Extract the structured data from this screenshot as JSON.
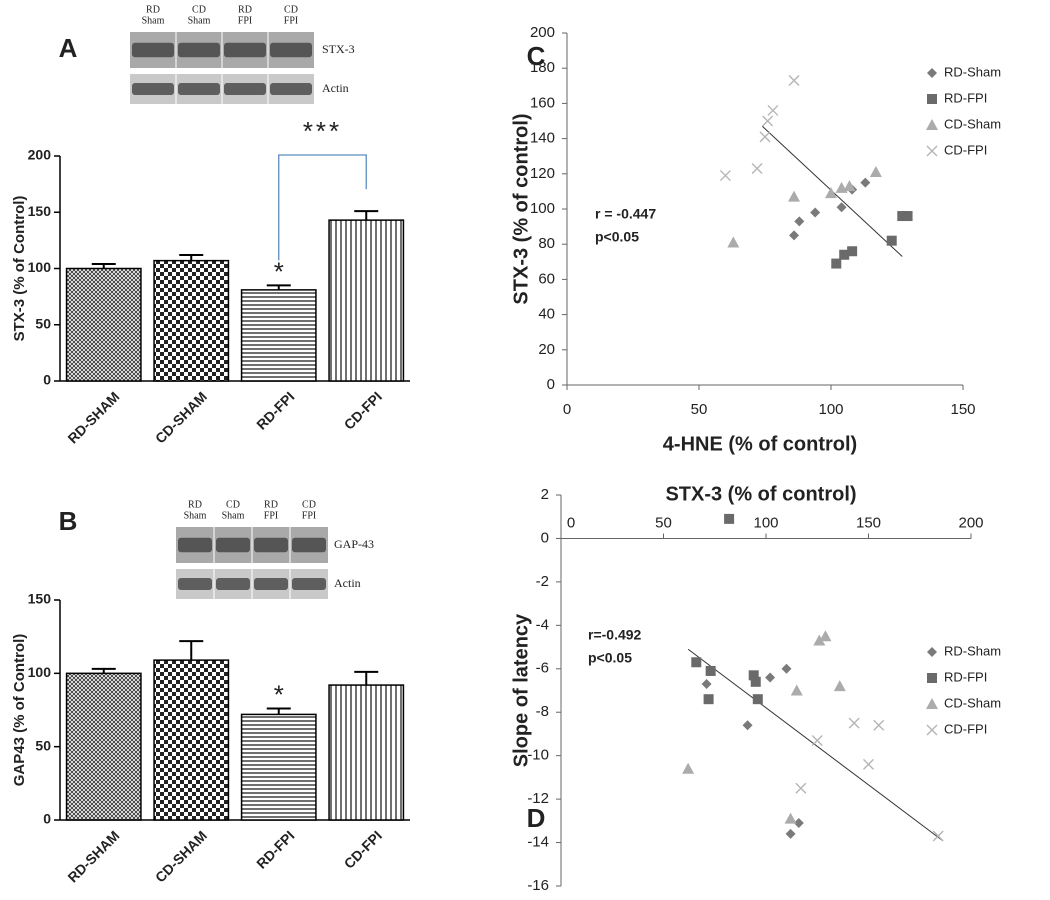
{
  "chart_data": [
    {
      "type": "bar",
      "panel": "A",
      "ylabel": "STX-3 (% of Control)",
      "categories": [
        "RD-SHAM",
        "CD-SHAM",
        "RD-FPI",
        "CD-FPI"
      ],
      "values": [
        100,
        107,
        81,
        143
      ],
      "errors": [
        4,
        5,
        4,
        8
      ],
      "patterns": [
        "crosshatch",
        "checker",
        "horizontal",
        "vertical"
      ],
      "ylim": [
        0,
        200
      ],
      "yticks": [
        0,
        50,
        100,
        150,
        200
      ],
      "annotations": [
        "*",
        "***"
      ],
      "blot": {
        "lanes": [
          [
            "RD",
            "Sham"
          ],
          [
            "CD",
            "Sham"
          ],
          [
            "RD",
            "FPI"
          ],
          [
            "CD",
            "FPI"
          ]
        ],
        "rows": [
          "STX-3",
          "Actin"
        ]
      }
    },
    {
      "type": "bar",
      "panel": "B",
      "ylabel": "GAP43 (% of Control)",
      "categories": [
        "RD-SHAM",
        "CD-SHAM",
        "RD-FPI",
        "CD-FPI"
      ],
      "values": [
        100,
        109,
        72,
        92
      ],
      "errors": [
        3,
        13,
        4,
        9
      ],
      "patterns": [
        "crosshatch",
        "checker",
        "horizontal",
        "vertical"
      ],
      "ylim": [
        0,
        150
      ],
      "yticks": [
        0,
        50,
        100,
        150
      ],
      "annotations": [
        "*"
      ],
      "blot": {
        "lanes": [
          [
            "RD",
            "Sham"
          ],
          [
            "CD",
            "Sham"
          ],
          [
            "RD",
            "FPI"
          ],
          [
            "CD",
            "FPI"
          ]
        ],
        "rows": [
          "GAP-43",
          "Actin"
        ]
      }
    },
    {
      "type": "scatter",
      "panel": "C",
      "xlabel": "4-HNE (% of control)",
      "ylabel": "STX-3 (% of control)",
      "xlim": [
        0,
        150
      ],
      "xticks": [
        0,
        50,
        100,
        150
      ],
      "ylim": [
        0,
        200
      ],
      "yticks": [
        0,
        20,
        40,
        60,
        80,
        100,
        120,
        140,
        160,
        180,
        200
      ],
      "annotations": [
        "r = -0.447",
        "p<0.05"
      ],
      "series": [
        {
          "name": "RD-Sham",
          "color": "#7a7a7a",
          "marker": "diamond",
          "x": [
            86,
            88,
            94,
            104,
            108,
            113
          ],
          "y": [
            85,
            93,
            98,
            101,
            111,
            115
          ]
        },
        {
          "name": "RD-FPI",
          "color": "#6a6a6a",
          "marker": "square",
          "x": [
            102,
            105,
            108,
            123,
            127,
            129
          ],
          "y": [
            69,
            74,
            76,
            82,
            96,
            96
          ]
        },
        {
          "name": "CD-Sham",
          "color": "#ababab",
          "marker": "triangle",
          "x": [
            63,
            86,
            100,
            104,
            107,
            117
          ],
          "y": [
            81,
            107,
            109,
            112,
            113,
            121
          ]
        },
        {
          "name": "CD-FPI",
          "color": "#b5b5b5",
          "marker": "x",
          "x": [
            60,
            72,
            75,
            76,
            78,
            86
          ],
          "y": [
            119,
            123,
            141,
            150,
            156,
            173
          ]
        }
      ],
      "trendline": {
        "x": [
          74,
          127
        ],
        "y": [
          147,
          73
        ]
      }
    },
    {
      "type": "scatter",
      "panel": "D",
      "xlabel": "STX-3 (% of control)",
      "ylabel": "Slope of latency",
      "xlim": [
        0,
        200
      ],
      "xticks": [
        0,
        50,
        100,
        150,
        200
      ],
      "ylim": [
        -16,
        2
      ],
      "yticks": [
        2,
        0,
        -2,
        -4,
        -6,
        -8,
        -10,
        -12,
        -14,
        -16
      ],
      "annotations": [
        "r=-0.492",
        "p<0.05"
      ],
      "series": [
        {
          "name": "RD-Sham",
          "color": "#7a7a7a",
          "marker": "diamond",
          "x": [
            71,
            91,
            102,
            110,
            112,
            116
          ],
          "y": [
            -6.7,
            -8.6,
            -6.4,
            -6.0,
            -13.6,
            -13.1
          ]
        },
        {
          "name": "RD-FPI",
          "color": "#6a6a6a",
          "marker": "square",
          "x": [
            66,
            72,
            73,
            82,
            94,
            95,
            96
          ],
          "y": [
            -5.7,
            -7.4,
            -6.1,
            0.9,
            -6.3,
            -6.6,
            -7.4
          ]
        },
        {
          "name": "CD-Sham",
          "color": "#ababab",
          "marker": "triangle",
          "x": [
            62,
            112,
            115,
            126,
            129,
            136
          ],
          "y": [
            -10.6,
            -12.9,
            -7.0,
            -4.7,
            -4.5,
            -6.8
          ]
        },
        {
          "name": "CD-FPI",
          "color": "#b5b5b5",
          "marker": "x",
          "x": [
            117,
            125,
            143,
            150,
            155,
            184
          ],
          "y": [
            -11.5,
            -9.3,
            -8.5,
            -10.4,
            -8.6,
            -13.7
          ]
        }
      ],
      "trendline": {
        "x": [
          62,
          186
        ],
        "y": [
          -5.1,
          -13.9
        ]
      }
    }
  ]
}
